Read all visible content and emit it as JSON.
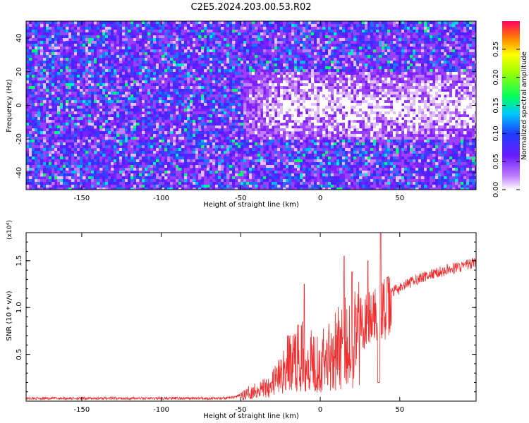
{
  "title": "C2E5.2024.203.00.53.R02",
  "chart_data": [
    {
      "type": "heatmap",
      "xlabel": "Height of straight line (km)",
      "ylabel": "Frequency (Hz)",
      "xlim": [
        -185,
        98
      ],
      "ylim": [
        -50,
        50
      ],
      "xticks": [
        -150,
        -100,
        -50,
        0,
        50
      ],
      "yticks": [
        -40,
        -20,
        0,
        20,
        40
      ],
      "colorbar": {
        "label": "Normalized spectral amplitude",
        "range": [
          0,
          0.3
        ],
        "ticks": [
          0.0,
          0.05,
          0.1,
          0.15,
          0.2,
          0.25
        ],
        "tick_labels": [
          "0.00",
          "0.05",
          "0.10",
          "0.15",
          "0.20",
          "0.25"
        ]
      },
      "description_band": {
        "x_start": -50,
        "x_end": 98,
        "freq_min": -20,
        "freq_max": 20,
        "note_value": 0.01
      }
    },
    {
      "type": "line",
      "xlabel": "Height of straight line (km)",
      "ylabel": "SNR (10 * v/v)",
      "y_multiplier": "(x10",
      "y_multiplier_exp": "4",
      "y_multiplier_close": ")",
      "xlim": [
        -185,
        98
      ],
      "ylim": [
        0,
        1.8
      ],
      "xticks": [
        -150,
        -100,
        -50,
        0,
        50
      ],
      "yticks": [
        0.5,
        1.0,
        1.5
      ],
      "ytick_labels": [
        "0.5",
        "1.0",
        "1.5"
      ],
      "color": "#f03030",
      "envelope": [
        {
          "x": -185,
          "y": 0.03
        },
        {
          "x": -60,
          "y": 0.03
        },
        {
          "x": -52,
          "y": 0.05
        },
        {
          "x": -45,
          "y": 0.12
        },
        {
          "x": -35,
          "y": 0.2
        },
        {
          "x": -25,
          "y": 0.35
        },
        {
          "x": -20,
          "y": 0.55
        },
        {
          "x": -10,
          "y": 0.65
        },
        {
          "x": 0,
          "y": 0.55
        },
        {
          "x": 10,
          "y": 0.75
        },
        {
          "x": 17,
          "y": 0.85
        },
        {
          "x": 25,
          "y": 1.0
        },
        {
          "x": 35,
          "y": 1.05
        },
        {
          "x": 40,
          "y": 1.15
        },
        {
          "x": 50,
          "y": 1.2
        },
        {
          "x": 60,
          "y": 1.3
        },
        {
          "x": 75,
          "y": 1.38
        },
        {
          "x": 98,
          "y": 1.48
        }
      ],
      "spikes": [
        {
          "x": -10,
          "y": 1.25
        },
        {
          "x": 15,
          "y": 1.55
        },
        {
          "x": 20,
          "y": 1.38
        },
        {
          "x": 30,
          "y": 1.5
        },
        {
          "x": 38,
          "y": 1.8
        },
        {
          "x": 42,
          "y": 1.32
        }
      ]
    }
  ]
}
